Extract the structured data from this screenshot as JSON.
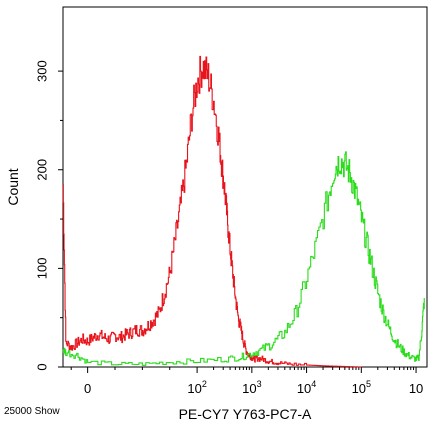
{
  "chart_data": {
    "type": "line",
    "title": "",
    "xlabel": "PE-CY7 Y763-PC7-A",
    "ylabel": "Count",
    "ylim": [
      0,
      365
    ],
    "xscale": "biexponential",
    "xlim_decades": [
      -0.45,
      6.2
    ],
    "y_ticks": [
      0,
      100,
      200,
      300
    ],
    "x_ticks": [
      {
        "label": "0",
        "decade": 0,
        "sup": ""
      },
      {
        "label": "10",
        "decade": 2,
        "sup": "2"
      },
      {
        "label": "10",
        "decade": 3,
        "sup": "3"
      },
      {
        "label": "10",
        "decade": 4,
        "sup": "4"
      },
      {
        "label": "10",
        "decade": 5,
        "sup": "5"
      },
      {
        "label": "10",
        "decade": 6,
        "sup": ""
      }
    ],
    "footer": "25000 Show",
    "grid": false,
    "legend": "none",
    "series": [
      {
        "color": "#e8141c",
        "x": [
          -0.45,
          -0.4,
          -0.3,
          -0.2,
          -0.1,
          0.0,
          0.1,
          0.2,
          0.3,
          0.4,
          0.5,
          0.6,
          0.7,
          0.8,
          0.9,
          1.0,
          1.1,
          1.2,
          1.3,
          1.4,
          1.5,
          1.6,
          1.7,
          1.8,
          1.9,
          2.0,
          2.1,
          2.2,
          2.3,
          2.4,
          2.45,
          2.5,
          2.55,
          2.6,
          2.65,
          2.7,
          2.75,
          2.8,
          2.85,
          2.9,
          2.95,
          3.0,
          3.05,
          3.1,
          3.2,
          3.3,
          3.4,
          3.5,
          3.7,
          4.0,
          4.4,
          5.0
        ],
        "y": [
          185,
          25,
          20,
          24,
          28,
          26,
          30,
          33,
          30,
          28,
          32,
          30,
          33,
          35,
          38,
          37,
          42,
          48,
          55,
          75,
          95,
          130,
          165,
          205,
          255,
          290,
          305,
          295,
          270,
          230,
          205,
          180,
          150,
          120,
          95,
          70,
          50,
          38,
          25,
          16,
          12,
          10,
          8,
          9,
          8,
          6,
          5,
          4,
          3,
          2,
          1,
          0
        ]
      },
      {
        "color": "#2bdc1c",
        "x": [
          -0.45,
          -0.4,
          -0.2,
          0.0,
          0.5,
          1.0,
          1.5,
          2.0,
          2.5,
          2.8,
          3.0,
          3.2,
          3.4,
          3.6,
          3.8,
          4.0,
          4.2,
          4.4,
          4.5,
          4.6,
          4.7,
          4.8,
          4.9,
          5.0,
          5.1,
          5.2,
          5.3,
          5.4,
          5.5,
          5.6,
          5.7,
          5.8,
          5.9,
          6.0,
          6.05,
          6.1,
          6.15
        ],
        "y": [
          18,
          15,
          12,
          5,
          3,
          3,
          5,
          6,
          8,
          10,
          14,
          18,
          25,
          35,
          55,
          90,
          130,
          175,
          200,
          210,
          205,
          195,
          175,
          150,
          125,
          100,
          75,
          55,
          40,
          28,
          20,
          14,
          10,
          8,
          10,
          35,
          70
        ]
      }
    ]
  }
}
